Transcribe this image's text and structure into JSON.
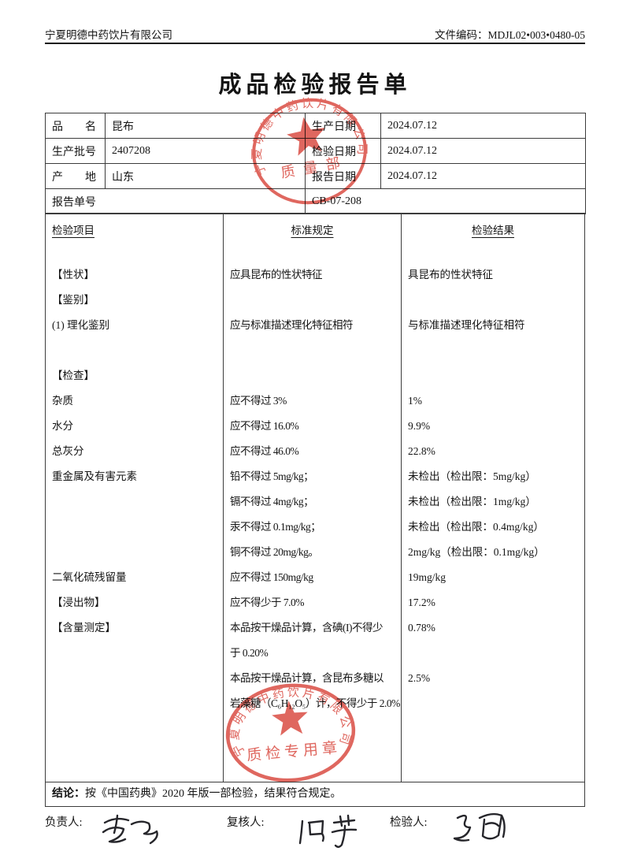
{
  "header": {
    "company": "宁夏明德中药饮片有限公司",
    "doc_code": "文件编码：MDJL02•003•0480-05"
  },
  "title": "成品检验报告单",
  "info_table": {
    "rows": [
      {
        "l1": "品　　名",
        "v1": "昆布",
        "l2": "生产日期",
        "v2": "2024.07.12"
      },
      {
        "l1": "生产批号",
        "v1": "2407208",
        "l2": "检验日期",
        "v2": "2024.07.12"
      },
      {
        "l1": "产　　地",
        "v1": "山东",
        "l2": "报告日期",
        "v2": "2024.07.12"
      }
    ],
    "report_no_label": "报告单号",
    "report_no": "CB-07-208"
  },
  "table": {
    "headers": [
      "检验项目",
      "标准规定",
      "检验结果"
    ],
    "rows": [
      [
        "【性状】",
        "应具昆布的性状特征",
        "具昆布的性状特征"
      ],
      [
        "【鉴别】",
        "",
        ""
      ],
      [
        "(1) 理化鉴别",
        "应与标准描述理化特征相符",
        "与标准描述理化特征相符"
      ],
      [
        "",
        "",
        ""
      ],
      [
        "【检查】",
        "",
        ""
      ],
      [
        "杂质",
        "应不得过 3%",
        "1%"
      ],
      [
        "水分",
        "应不得过 16.0%",
        "9.9%"
      ],
      [
        "总灰分",
        "应不得过 46.0%",
        "22.8%"
      ],
      [
        "重金属及有害元素",
        "铅不得过 5mg/kg；",
        "未检出（检出限：5mg/kg）"
      ],
      [
        "",
        "镉不得过 4mg/kg；",
        "未检出（检出限：1mg/kg）"
      ],
      [
        "",
        "汞不得过 0.1mg/kg；",
        "未检出（检出限：0.4mg/kg）"
      ],
      [
        "",
        "铜不得过 20mg/kg。",
        "2mg/kg（检出限：0.1mg/kg）"
      ],
      [
        "二氧化硫残留量",
        "应不得过 150mg/kg",
        "19mg/kg"
      ],
      [
        "【浸出物】",
        "应不得少于 7.0%",
        "17.2%"
      ],
      [
        "【含量测定】",
        "本品按干燥品计算，含碘(I)不得少",
        "0.78%"
      ],
      [
        "",
        "于 0.20%",
        ""
      ],
      [
        "",
        "本品按干燥品计算，含昆布多糖以",
        "2.5%"
      ],
      [
        "",
        "岩藻糖（C₆H₁₂O₅）计，不得少于 2.0%",
        ""
      ]
    ]
  },
  "conclusion": {
    "label": "结论：",
    "text": "按《中国药典》2020 年版一部检验，结果符合规定。"
  },
  "signatures": {
    "responsible_label": "负责人:",
    "reviewer_label": "复核人:",
    "inspector_label": "检验人:"
  },
  "stamps": {
    "color": "#d8453b",
    "top": {
      "arc_text": "宁夏明德中药饮片有限公司",
      "center_text": "质量部"
    },
    "bottom": {
      "arc_text": "宁夏明德中药饮片有限公司",
      "center_text": "质检专用章"
    }
  }
}
